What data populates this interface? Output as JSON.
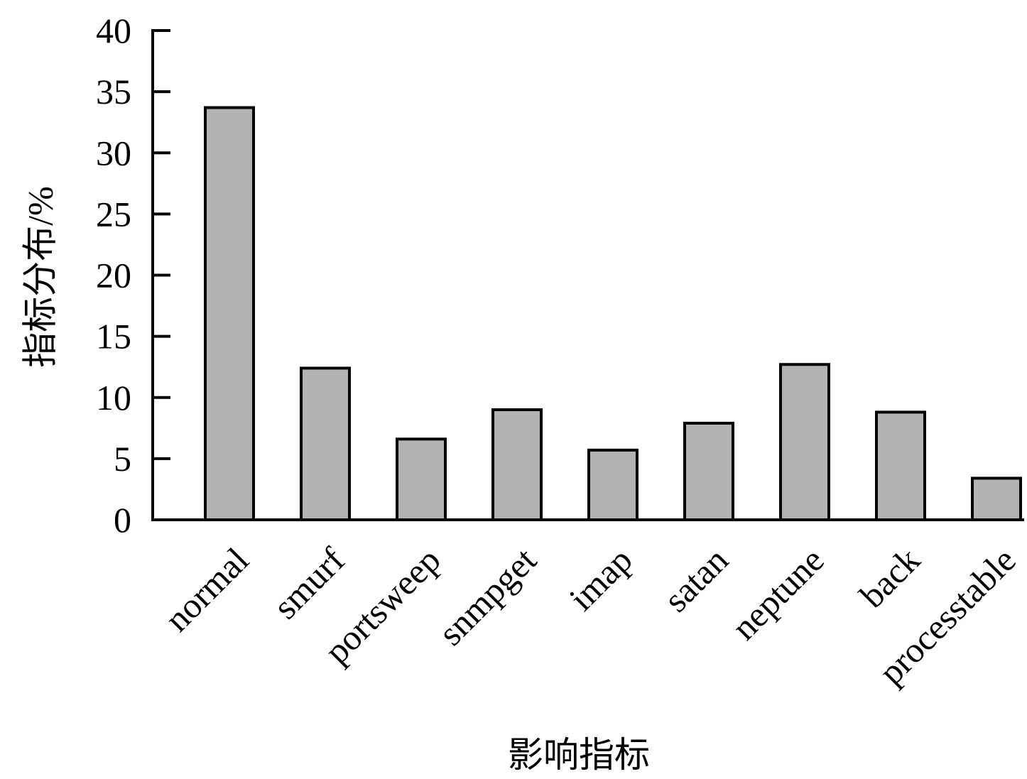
{
  "chart_data": {
    "type": "bar",
    "categories": [
      "normal",
      "smurf",
      "portsweep",
      "snmpget",
      "imap",
      "satan",
      "neptune",
      "back",
      "processtable"
    ],
    "values": [
      33.7,
      12.4,
      6.6,
      9.0,
      5.7,
      7.9,
      12.7,
      8.8,
      3.4
    ],
    "color": "#b3b3b3",
    "ylim": [
      0,
      40
    ],
    "yticks": [
      0,
      5,
      10,
      15,
      20,
      25,
      30,
      35,
      40
    ],
    "y_label": "指标分布/%",
    "x_label": "影响指标",
    "grid": false
  }
}
